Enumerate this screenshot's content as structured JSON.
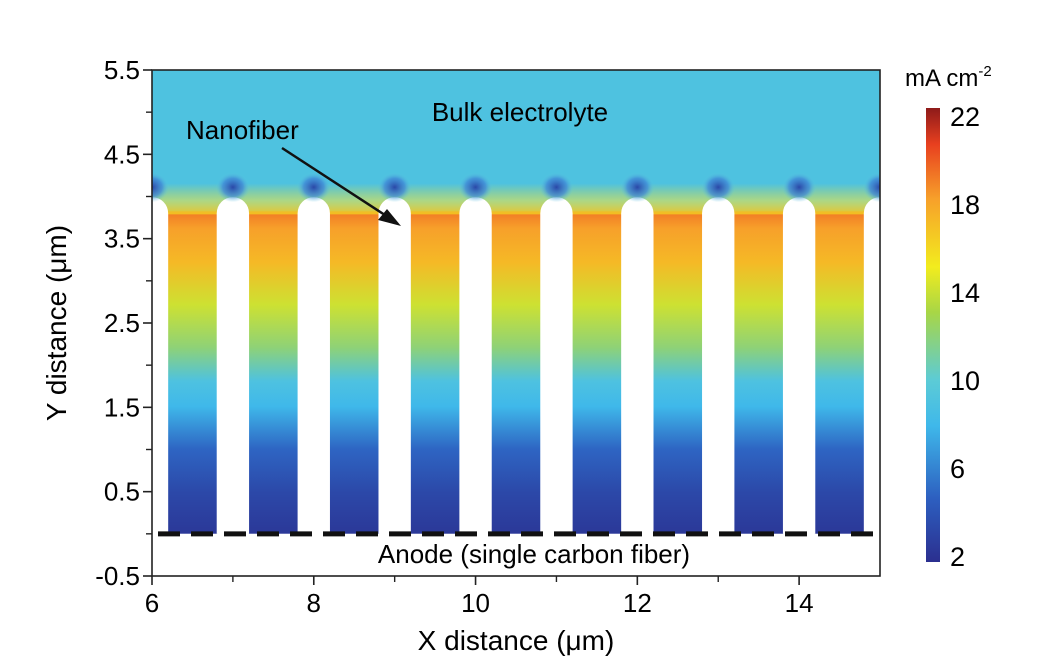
{
  "chart_data": {
    "type": "heatmap",
    "title": "",
    "xlabel": "X distance (μm)",
    "ylabel": "Y distance (μm)",
    "xlim": [
      6,
      15
    ],
    "ylim": [
      -0.5,
      5.5
    ],
    "x_ticks": [
      6,
      8,
      10,
      12,
      14
    ],
    "x_tick_labels": [
      "6",
      "8",
      "10",
      "12",
      "14"
    ],
    "y_ticks": [
      5.5,
      4.5,
      3.5,
      2.5,
      1.5,
      0.5,
      -0.5
    ],
    "y_tick_labels": [
      "5.5",
      "4.5",
      "3.5",
      "2.5",
      "1.5",
      "0.5",
      "-0.5"
    ],
    "colorbar": {
      "unit_base": "mA cm",
      "unit_exp": "-2",
      "range": [
        2,
        22
      ],
      "ticks": [
        22,
        18,
        14,
        10,
        6,
        2
      ],
      "tick_labels": [
        "22",
        "18",
        "14",
        "10",
        "6",
        "2"
      ],
      "colormap": "jet"
    },
    "annotations": {
      "bulk": "Bulk electrolyte",
      "nanofiber": "Nanofiber",
      "anode": "Anode (single carbon fiber)"
    },
    "bulk_electrolyte_current": 9,
    "nanofiber_top_y": 3.8,
    "anode_y": 0,
    "nanofiber_centers_x": [
      6.0,
      7.0,
      8.0,
      9.0,
      10.0,
      11.0,
      12.0,
      13.0,
      14.0,
      15.0
    ],
    "nanofiber_radius": 0.2,
    "gap_current_profile": [
      {
        "y": 3.8,
        "value": 19
      },
      {
        "y": 3.6,
        "value": 18
      },
      {
        "y": 3.2,
        "value": 17
      },
      {
        "y": 2.7,
        "value": 14
      },
      {
        "y": 2.2,
        "value": 12
      },
      {
        "y": 1.8,
        "value": 9
      },
      {
        "y": 1.5,
        "value": 8
      },
      {
        "y": 1.0,
        "value": 5
      },
      {
        "y": 0.5,
        "value": 3.5
      },
      {
        "y": 0.0,
        "value": 2.5
      }
    ]
  }
}
